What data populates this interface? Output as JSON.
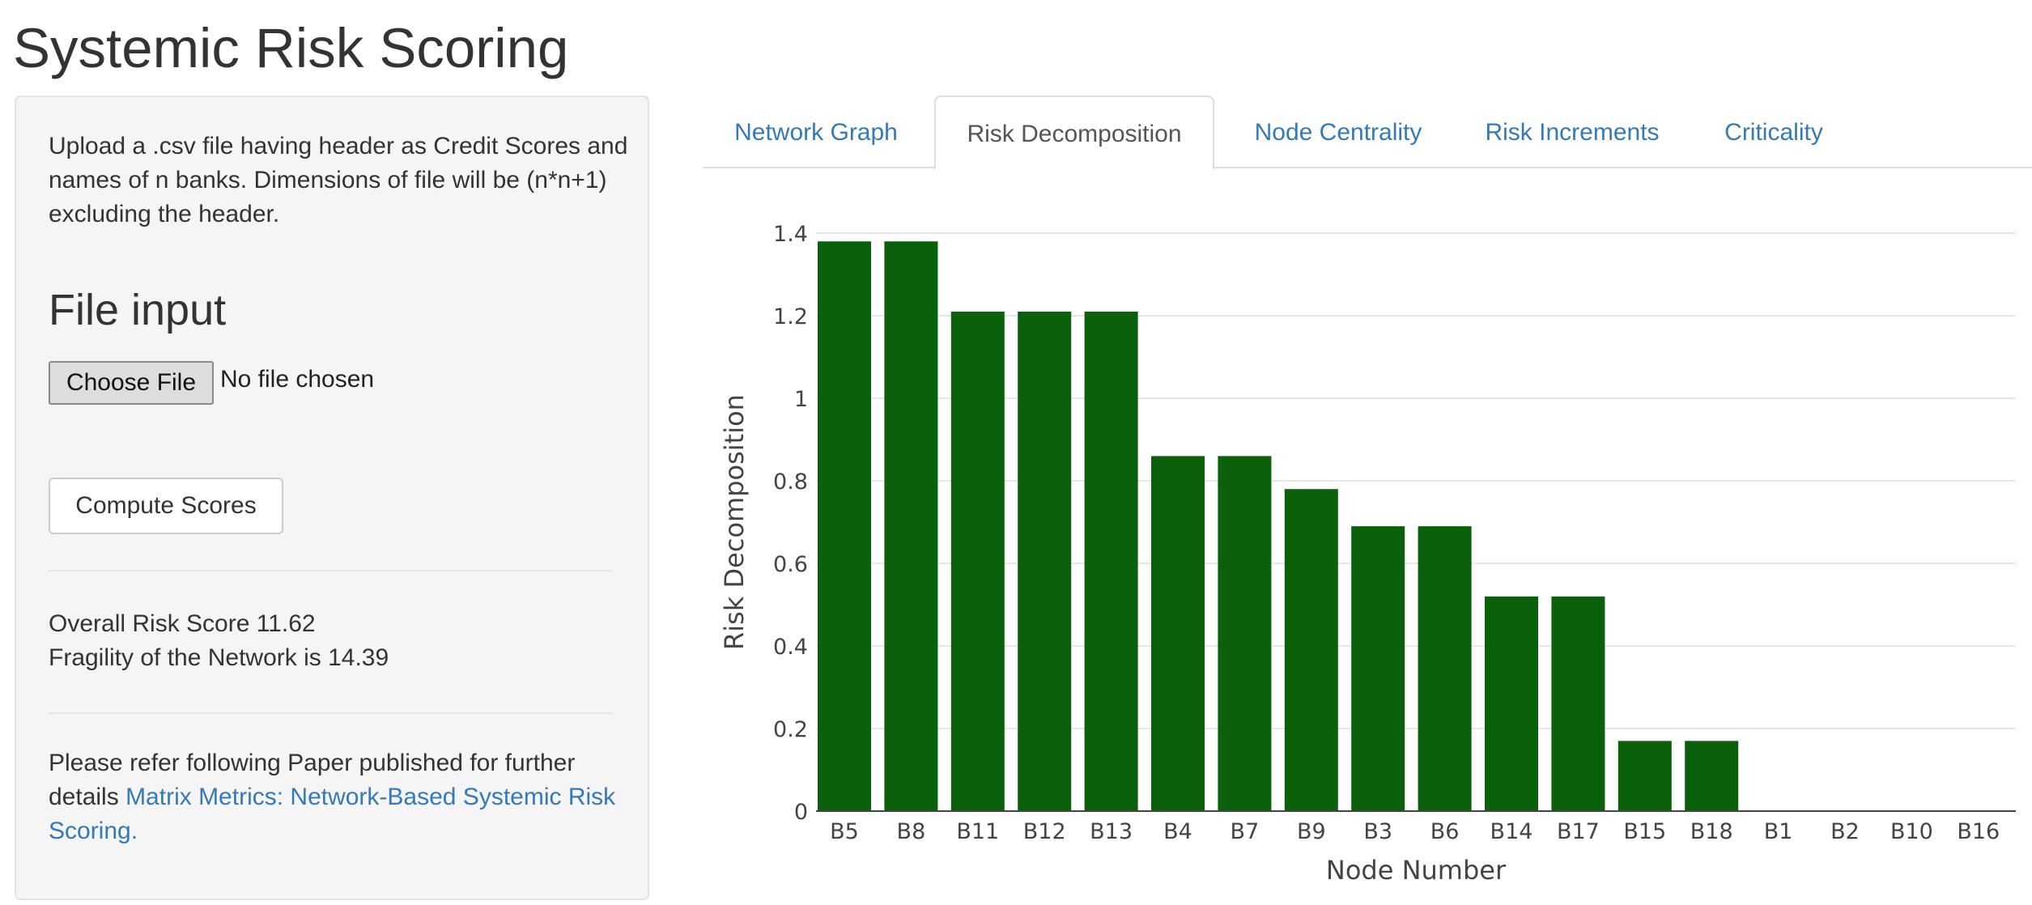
{
  "page": {
    "title": "Systemic Risk Scoring"
  },
  "sidebar": {
    "help_text": "Upload a .csv file having header as Credit Scores and names of n banks. Dimensions of file will be (n*n+1) excluding the header.",
    "file_input_heading": "File input",
    "choose_file_label": "Choose File",
    "no_file_text": "No file chosen",
    "compute_button_label": "Compute Scores",
    "overall_risk_text": "Overall Risk Score 11.62",
    "fragility_text": "Fragility of the Network is 14.39",
    "paper_intro": "Please refer following Paper published for further details",
    "paper_link": "Matrix Metrics: Network-Based Systemic Risk Scoring."
  },
  "tabs": [
    {
      "label": "Network Graph",
      "active": false
    },
    {
      "label": "Risk Decomposition",
      "active": true
    },
    {
      "label": "Node Centrality",
      "active": false
    },
    {
      "label": "Risk Increments",
      "active": false
    },
    {
      "label": "Criticality",
      "active": false
    }
  ],
  "chart_data": {
    "type": "bar",
    "categories": [
      "B5",
      "B8",
      "B11",
      "B12",
      "B13",
      "B4",
      "B7",
      "B9",
      "B3",
      "B6",
      "B14",
      "B17",
      "B15",
      "B18",
      "B1",
      "B2",
      "B10",
      "B16"
    ],
    "values": [
      1.38,
      1.38,
      1.21,
      1.21,
      1.21,
      0.86,
      0.86,
      0.78,
      0.69,
      0.69,
      0.52,
      0.52,
      0.17,
      0.17,
      0,
      0,
      0,
      0
    ],
    "xlabel": "Node Number",
    "ylabel": "Risk Decomposition",
    "ylim": [
      0,
      1.4
    ],
    "yticks": [
      "0",
      "0.2",
      "0.4",
      "0.6",
      "0.8",
      "1",
      "1.2",
      "1.4"
    ],
    "bar_color": "#0b610b",
    "grid": true
  }
}
